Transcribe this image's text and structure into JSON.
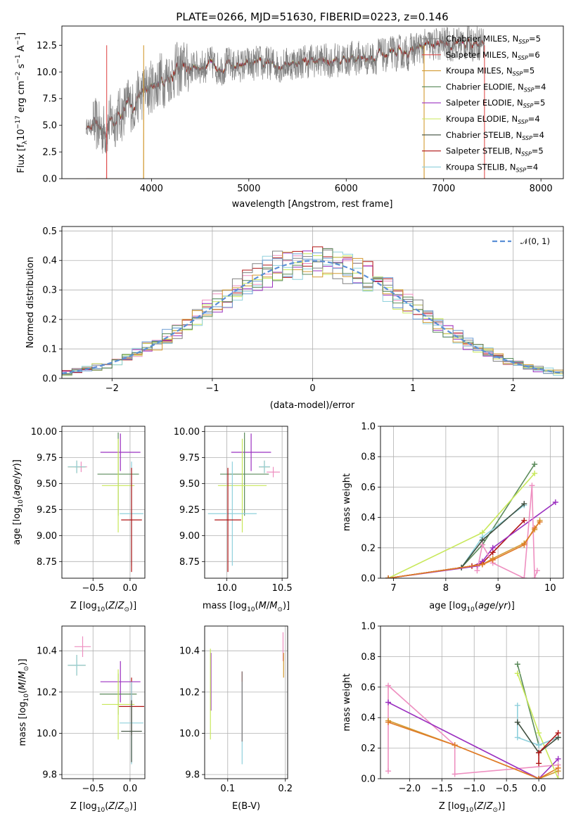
{
  "chart_data": [
    {
      "id": "spectrum",
      "type": "line",
      "title": "PLATE=0266, MJD=51630, FIBERID=0223, z=0.146",
      "xlabel": "wavelength [Angstrom, rest frame]",
      "ylabel": "Flux [f_λ 10^-17 erg cm^-2 s^-1 A^-1]",
      "xlim": [
        3080,
        8230
      ],
      "ylim": [
        0,
        14.3
      ],
      "xticks": [
        4000,
        5000,
        6000,
        7000,
        8000
      ],
      "yticks": [
        0.0,
        2.5,
        5.0,
        7.5,
        10.0,
        12.5
      ],
      "xtick_labels": [
        "4000",
        "5000",
        "6000",
        "7000",
        "8000"
      ],
      "ytick_labels": [
        "0.0",
        "2.5",
        "5.0",
        "7.5",
        "10.0",
        "12.5"
      ],
      "grid": false,
      "legend_position": "top-right",
      "data_color": "#808080",
      "continuum": {
        "x": [
          3330,
          3500,
          3700,
          3900,
          4100,
          4300,
          4500,
          5000,
          5500,
          6000,
          6500,
          6800,
          7000,
          7200,
          7400
        ],
        "y": [
          4.9,
          4.7,
          6.2,
          7.8,
          9.4,
          10.2,
          10.6,
          10.6,
          10.9,
          11.2,
          11.6,
          12.3,
          12.6,
          12.7,
          12.9
        ]
      },
      "series": [
        {
          "name": "Chabrier MILES, N_SSP=5",
          "color": "#808080",
          "cutoff": []
        },
        {
          "name": "Salpeter MILES, N_SSP=6",
          "color": "#e05050",
          "cutoff": [
            3540,
            7420
          ]
        },
        {
          "name": "Kroupa MILES, N_SSP=5",
          "color": "#d29a32",
          "cutoff": [
            3920,
            6800
          ]
        },
        {
          "name": "Chabrier ELODIE, N_SSP=4",
          "color": "#5a8a5a",
          "cutoff": []
        },
        {
          "name": "Salpeter ELODIE, N_SSP=5",
          "color": "#9b30c0",
          "cutoff": []
        },
        {
          "name": "Kroupa ELODIE, N_SSP=4",
          "color": "#c8e85a",
          "cutoff": []
        },
        {
          "name": "Chabrier STELIB, N_SSP=4",
          "color": "#3f4f3f",
          "cutoff": []
        },
        {
          "name": "Salpeter STELIB, N_SSP=5",
          "color": "#b01515",
          "cutoff": []
        },
        {
          "name": "Kroupa STELIB, N_SSP=4",
          "color": "#8fd0dc",
          "cutoff": []
        }
      ]
    },
    {
      "id": "residuals",
      "type": "line",
      "title": "",
      "xlabel": "(data-model)/error",
      "ylabel": "Normed distribution",
      "xlim": [
        -2.5,
        2.5
      ],
      "ylim": [
        0,
        0.515
      ],
      "xticks": [
        -2,
        -1,
        0,
        1,
        2
      ],
      "yticks": [
        0.0,
        0.1,
        0.2,
        0.3,
        0.4,
        0.5
      ],
      "xtick_labels": [
        "−2",
        "−1",
        "0",
        "1",
        "2"
      ],
      "ytick_labels": [
        "0.0",
        "0.1",
        "0.2",
        "0.3",
        "0.4",
        "0.5"
      ],
      "grid": true,
      "legend_position": "top-right",
      "legend": [
        {
          "name": "𝒩(0, 1)",
          "color": "#5b8fd6",
          "dashed": true
        }
      ],
      "step_colors": [
        "#ee8fc0",
        "#9b30c0",
        "#b01515",
        "#c8e85a",
        "#8fd0dc",
        "#808080",
        "#d29a32",
        "#6c9bd2",
        "#5a8a5a"
      ]
    },
    {
      "id": "age_vs_Z",
      "type": "scatter",
      "xlabel": "Z [log10(Z/Z⊙)]",
      "ylabel": "age  [log10(age/yr)]",
      "xlim": [
        -0.92,
        0.2
      ],
      "ylim": [
        8.59,
        10.05
      ],
      "xticks": [
        -0.5,
        0.0
      ],
      "yticks": [
        8.75,
        9.0,
        9.25,
        9.5,
        9.75,
        10.0
      ],
      "xtick_labels": [
        "−0.5",
        "0.0"
      ],
      "ytick_labels": [
        "8.75",
        "9.00",
        "9.25",
        "9.50",
        "9.75",
        "10.00"
      ],
      "grid": true,
      "points": [
        {
          "x": -0.66,
          "xerr": 0.08,
          "y": 9.66,
          "yerr": 0.05,
          "color": "#ee8fc0"
        },
        {
          "x": -0.72,
          "xerr": 0.12,
          "y": 9.66,
          "yerr": 0.06,
          "color": "#d29a32"
        },
        {
          "x": -0.72,
          "xerr": 0.12,
          "y": 9.66,
          "yerr": 0.06,
          "color": "#8fd0dc"
        },
        {
          "x": -0.13,
          "xerr": 0.27,
          "y": 9.8,
          "yerr": 0.18,
          "color": "#9b30c0"
        },
        {
          "x": -0.16,
          "xerr": 0.28,
          "y": 9.59,
          "yerr": 0.4,
          "color": "#5a8a5a"
        },
        {
          "x": -0.16,
          "xerr": 0.22,
          "y": 9.48,
          "yerr": 0.45,
          "color": "#c8e85a"
        },
        {
          "x": 0.02,
          "xerr": 0.16,
          "y": 9.21,
          "yerr": 0.5,
          "color": "#8fd0dc"
        },
        {
          "x": 0.02,
          "xerr": 0.14,
          "y": 9.15,
          "yerr": 0.5,
          "color": "#b01515"
        }
      ]
    },
    {
      "id": "age_vs_mass",
      "type": "scatter",
      "xlabel": "mass [log10(M/M⊙)]",
      "ylabel": "",
      "xlim": [
        9.8,
        10.55
      ],
      "ylim": [
        8.59,
        10.05
      ],
      "xticks": [
        10.0,
        10.5
      ],
      "yticks": [
        8.75,
        9.0,
        9.25,
        9.5,
        9.75,
        10.0
      ],
      "xtick_labels": [
        "10.0",
        "10.5"
      ],
      "ytick_labels": [
        "8.75",
        "9.00",
        "9.25",
        "9.50",
        "9.75",
        "10.00"
      ],
      "grid": true,
      "points": [
        {
          "x": 10.42,
          "xerr": 0.06,
          "y": 9.61,
          "yerr": 0.05,
          "color": "#ee8fc0"
        },
        {
          "x": 10.34,
          "xerr": 0.05,
          "y": 9.66,
          "yerr": 0.06,
          "color": "#d29a32"
        },
        {
          "x": 10.34,
          "xerr": 0.05,
          "y": 9.66,
          "yerr": 0.06,
          "color": "#8fd0dc"
        },
        {
          "x": 10.22,
          "xerr": 0.18,
          "y": 9.8,
          "yerr": 0.18,
          "color": "#9b30c0"
        },
        {
          "x": 10.16,
          "xerr": 0.22,
          "y": 9.59,
          "yerr": 0.4,
          "color": "#5a8a5a"
        },
        {
          "x": 10.14,
          "xerr": 0.22,
          "y": 9.48,
          "yerr": 0.45,
          "color": "#c8e85a"
        },
        {
          "x": 10.05,
          "xerr": 0.22,
          "y": 9.21,
          "yerr": 0.5,
          "color": "#8fd0dc"
        },
        {
          "x": 10.01,
          "xerr": 0.12,
          "y": 9.15,
          "yerr": 0.5,
          "color": "#b01515"
        }
      ]
    },
    {
      "id": "weight_vs_age",
      "type": "line",
      "xlabel": "age  [log10(age/yr)]",
      "ylabel": "mass weight",
      "xlim": [
        6.75,
        10.25
      ],
      "ylim": [
        0,
        1.0
      ],
      "xticks": [
        7,
        8,
        9,
        10
      ],
      "yticks": [
        0.0,
        0.2,
        0.4,
        0.6,
        0.8,
        1.0
      ],
      "xtick_labels": [
        "7",
        "8",
        "9",
        "10"
      ],
      "ytick_labels": [
        "0.0",
        "0.2",
        "0.4",
        "0.6",
        "0.8",
        "1.0"
      ],
      "grid": true,
      "series": [
        {
          "color": "#5a8a5a",
          "x": [
            6.9,
            8.3,
            8.7,
            9.7
          ],
          "y": [
            0.0,
            0.07,
            0.22,
            0.75
          ]
        },
        {
          "color": "#c8e85a",
          "x": [
            6.9,
            8.7,
            9.7
          ],
          "y": [
            0.0,
            0.3,
            0.69
          ]
        },
        {
          "color": "#8fd0dc",
          "x": [
            6.9,
            8.3,
            8.7,
            9.5
          ],
          "y": [
            0.0,
            0.07,
            0.27,
            0.48
          ]
        },
        {
          "color": "#3f4f3f",
          "x": [
            6.9,
            8.3,
            8.7,
            9.5
          ],
          "y": [
            0.0,
            0.07,
            0.25,
            0.49
          ]
        },
        {
          "color": "#b01515",
          "x": [
            6.9,
            8.5,
            8.7,
            8.9,
            9.5
          ],
          "y": [
            0.0,
            0.08,
            0.1,
            0.17,
            0.38
          ]
        },
        {
          "color": "#9b30c0",
          "x": [
            6.9,
            8.6,
            8.7,
            8.9,
            10.1
          ],
          "y": [
            0.0,
            0.08,
            0.11,
            0.2,
            0.5
          ]
        },
        {
          "color": "#ee8fc0",
          "x": [
            8.6,
            8.7,
            8.9,
            9.5,
            9.65,
            9.7,
            9.75
          ],
          "y": [
            0.05,
            0.22,
            0.1,
            0.0,
            0.61,
            0.0,
            0.05
          ]
        },
        {
          "color": "#d29a32",
          "x": [
            6.9,
            8.7,
            8.9,
            9.5,
            9.7,
            9.8
          ],
          "y": [
            0.0,
            0.09,
            0.13,
            0.23,
            0.32,
            0.38
          ]
        },
        {
          "color": "#e07a28",
          "x": [
            6.9,
            8.7,
            8.9,
            9.5,
            9.7,
            9.8
          ],
          "y": [
            0.0,
            0.09,
            0.12,
            0.22,
            0.33,
            0.37
          ]
        }
      ]
    },
    {
      "id": "mass_vs_Z",
      "type": "scatter",
      "xlabel": "Z [log10(Z/Z⊙)]",
      "ylabel": "mass [log10(M/M⊙)]",
      "xlim": [
        -0.92,
        0.2
      ],
      "ylim": [
        9.78,
        10.52
      ],
      "xticks": [
        -0.5,
        0.0
      ],
      "yticks": [
        9.8,
        10.0,
        10.2,
        10.4
      ],
      "xtick_labels": [
        "−0.5",
        "0.0"
      ],
      "ytick_labels": [
        "9.8",
        "10.0",
        "10.2",
        "10.4"
      ],
      "grid": true,
      "points": [
        {
          "x": -0.64,
          "xerr": 0.11,
          "y": 10.42,
          "yerr": 0.05,
          "color": "#ee8fc0"
        },
        {
          "x": -0.72,
          "xerr": 0.12,
          "y": 10.33,
          "yerr": 0.05,
          "color": "#d29a32"
        },
        {
          "x": -0.72,
          "xerr": 0.12,
          "y": 10.33,
          "yerr": 0.05,
          "color": "#8fd0dc"
        },
        {
          "x": -0.13,
          "xerr": 0.27,
          "y": 10.25,
          "yerr": 0.1,
          "color": "#9b30c0"
        },
        {
          "x": -0.16,
          "xerr": 0.25,
          "y": 10.19,
          "yerr": 0.1,
          "color": "#5a8a5a"
        },
        {
          "x": -0.16,
          "xerr": 0.22,
          "y": 10.14,
          "yerr": 0.17,
          "color": "#c8e85a"
        },
        {
          "x": 0.02,
          "xerr": 0.17,
          "y": 10.13,
          "yerr": 0.14,
          "color": "#b01515"
        },
        {
          "x": 0.02,
          "xerr": 0.16,
          "y": 10.05,
          "yerr": 0.2,
          "color": "#8fd0dc"
        },
        {
          "x": 0.02,
          "xerr": 0.14,
          "y": 10.01,
          "yerr": 0.15,
          "color": "#3f4f3f"
        }
      ]
    },
    {
      "id": "mass_vs_ebv",
      "type": "scatter",
      "xlabel": "E(B-V)",
      "ylabel": "",
      "xlim": [
        0.06,
        0.204
      ],
      "ylim": [
        9.78,
        10.52
      ],
      "xticks": [
        0.1,
        0.2
      ],
      "yticks": [
        9.8,
        10.0,
        10.2,
        10.4
      ],
      "xtick_labels": [
        "0.1",
        "0.2"
      ],
      "ytick_labels": [
        "9.8",
        "10.0",
        "10.2",
        "10.4"
      ],
      "grid": true,
      "points": [
        {
          "x": 0.196,
          "xerr": 0.0,
          "y": 10.42,
          "yerr": 0.07,
          "color": "#ee8fc0"
        },
        {
          "x": 0.197,
          "xerr": 0.0,
          "y": 10.33,
          "yerr": 0.06,
          "color": "#d29a32"
        },
        {
          "x": 0.071,
          "xerr": 0.0,
          "y": 10.25,
          "yerr": 0.14,
          "color": "#9b30c0"
        },
        {
          "x": 0.07,
          "xerr": 0.0,
          "y": 10.19,
          "yerr": 0.22,
          "color": "#c8e85a"
        },
        {
          "x": 0.125,
          "xerr": 0.0,
          "y": 10.13,
          "yerr": 0.17,
          "color": "#b01515"
        },
        {
          "x": 0.125,
          "xerr": 0.0,
          "y": 10.05,
          "yerr": 0.2,
          "color": "#8fd0dc"
        },
        {
          "x": 0.125,
          "xerr": 0.0,
          "y": 10.13,
          "yerr": 0.17,
          "color": "#808080"
        }
      ]
    },
    {
      "id": "weight_vs_Z",
      "type": "line",
      "xlabel": "Z [log10(Z/Z⊙)]",
      "ylabel": "mass weight",
      "xlim": [
        -2.45,
        0.38
      ],
      "ylim": [
        0,
        1.0
      ],
      "xticks": [
        -2.0,
        -1.5,
        -1.0,
        -0.5,
        0.0
      ],
      "yticks": [
        0.0,
        0.2,
        0.4,
        0.6,
        0.8,
        1.0
      ],
      "xtick_labels": [
        "−2.0",
        "−1.5",
        "−1.0",
        "−0.5",
        "0.0"
      ],
      "ytick_labels": [
        "0.0",
        "0.2",
        "0.4",
        "0.6",
        "0.8",
        "1.0"
      ],
      "grid": true,
      "series": [
        {
          "color": "#ee8fc0",
          "x": [
            -2.33,
            -2.33,
            -1.3,
            -1.3,
            0.3,
            0.3
          ],
          "y": [
            0.05,
            0.61,
            0.22,
            0.03,
            0.09,
            0.0
          ]
        },
        {
          "color": "#9b30c0",
          "x": [
            -2.33,
            0.0,
            0.3
          ],
          "y": [
            0.5,
            0.0,
            0.13
          ]
        },
        {
          "color": "#d29a32",
          "x": [
            -2.33,
            -1.3,
            0.0,
            0.3
          ],
          "y": [
            0.38,
            0.22,
            0.0,
            0.05
          ]
        },
        {
          "color": "#e07a28",
          "x": [
            -2.33,
            -1.3,
            0.0,
            0.3
          ],
          "y": [
            0.37,
            0.22,
            0.0,
            0.07
          ]
        },
        {
          "color": "#5a8a5a",
          "x": [
            -0.33,
            0.0,
            0.3
          ],
          "y": [
            0.75,
            0.22,
            0.27
          ]
        },
        {
          "color": "#c8e85a",
          "x": [
            -0.33,
            0.0,
            0.3
          ],
          "y": [
            0.69,
            0.3,
            0.0
          ]
        },
        {
          "color": "#8fd0dc",
          "x": [
            -0.33,
            -0.33,
            0.0,
            0.3
          ],
          "y": [
            0.48,
            0.27,
            0.22,
            0.27
          ]
        },
        {
          "color": "#3f4f3f",
          "x": [
            -0.33,
            0.0,
            0.3
          ],
          "y": [
            0.37,
            0.17,
            0.27
          ]
        },
        {
          "color": "#b01515",
          "x": [
            0.0,
            0.0,
            0.3
          ],
          "y": [
            0.1,
            0.17,
            0.3
          ]
        }
      ]
    }
  ]
}
